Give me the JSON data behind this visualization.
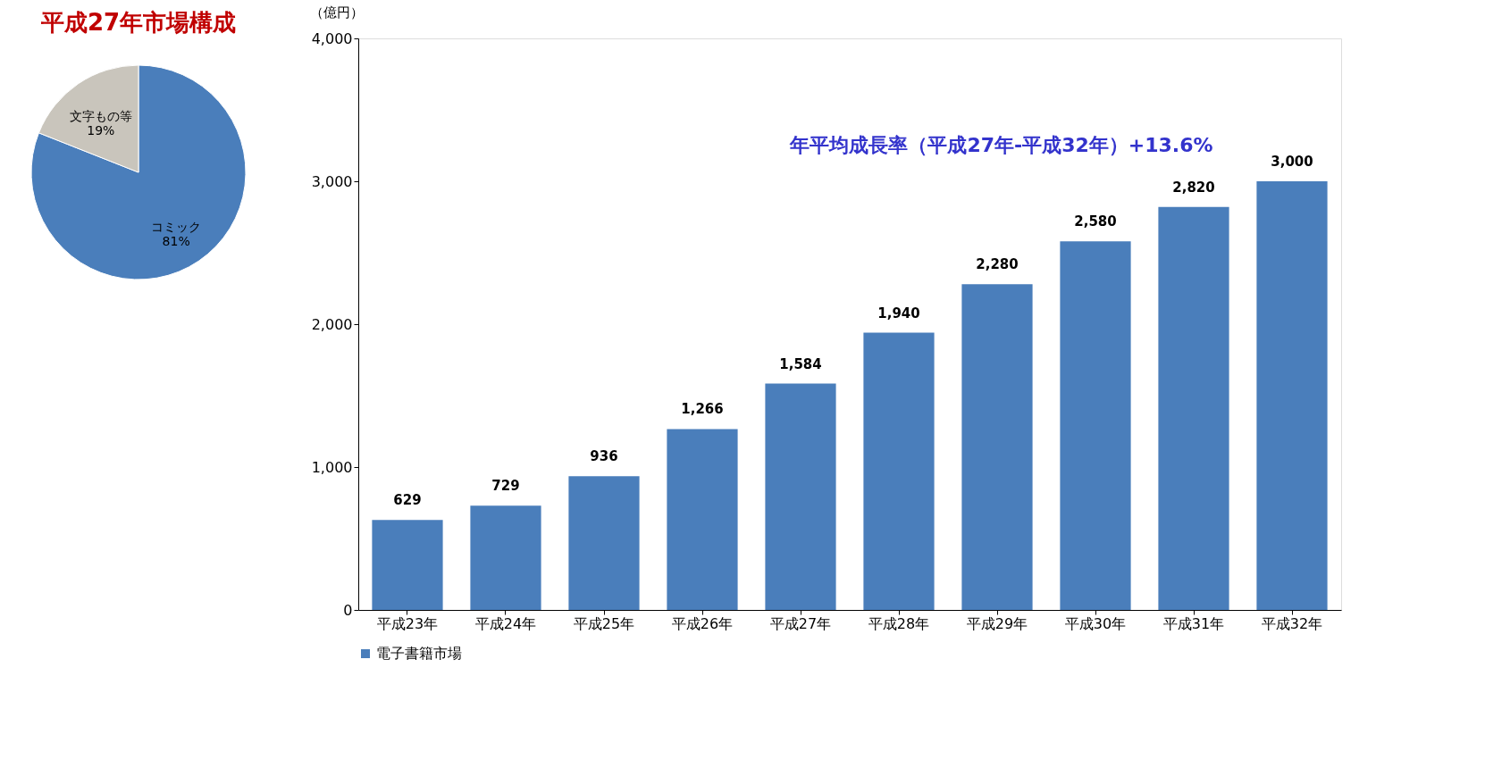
{
  "chart_data": [
    {
      "type": "pie",
      "title": "平成27年市場構成",
      "categories": [
        "コミック",
        "文字もの等"
      ],
      "values": [
        81,
        19
      ],
      "colors": [
        "#4a7ebb",
        "#c9c5bc"
      ],
      "value_labels": [
        "81%",
        "19%"
      ],
      "legend": false
    },
    {
      "type": "bar",
      "ylabel": "（億円）",
      "categories": [
        "平成23年",
        "平成24年",
        "平成25年",
        "平成26年",
        "平成27年",
        "平成28年",
        "平成29年",
        "平成30年",
        "平成31年",
        "平成32年"
      ],
      "series": [
        {
          "name": "電子書籍市場",
          "color": "#4a7ebb",
          "values": [
            629,
            729,
            936,
            1266,
            1584,
            1940,
            2280,
            2580,
            2820,
            3000
          ],
          "value_labels": [
            "629",
            "729",
            "936",
            "1,266",
            "1,584",
            "1,940",
            "2,280",
            "2,580",
            "2,820",
            "3,000"
          ]
        }
      ],
      "ylim": [
        0,
        4000
      ],
      "yticks": [
        {
          "value": 0,
          "label": "0"
        },
        {
          "value": 1000,
          "label": "1,000"
        },
        {
          "value": 2000,
          "label": "2,000"
        },
        {
          "value": 3000,
          "label": "3,000"
        },
        {
          "value": 4000,
          "label": "4,000"
        }
      ],
      "grid": false,
      "legend": "bottom",
      "annotations": [
        "年平均成長率（平成27年-平成32年）+13.6%"
      ]
    }
  ]
}
